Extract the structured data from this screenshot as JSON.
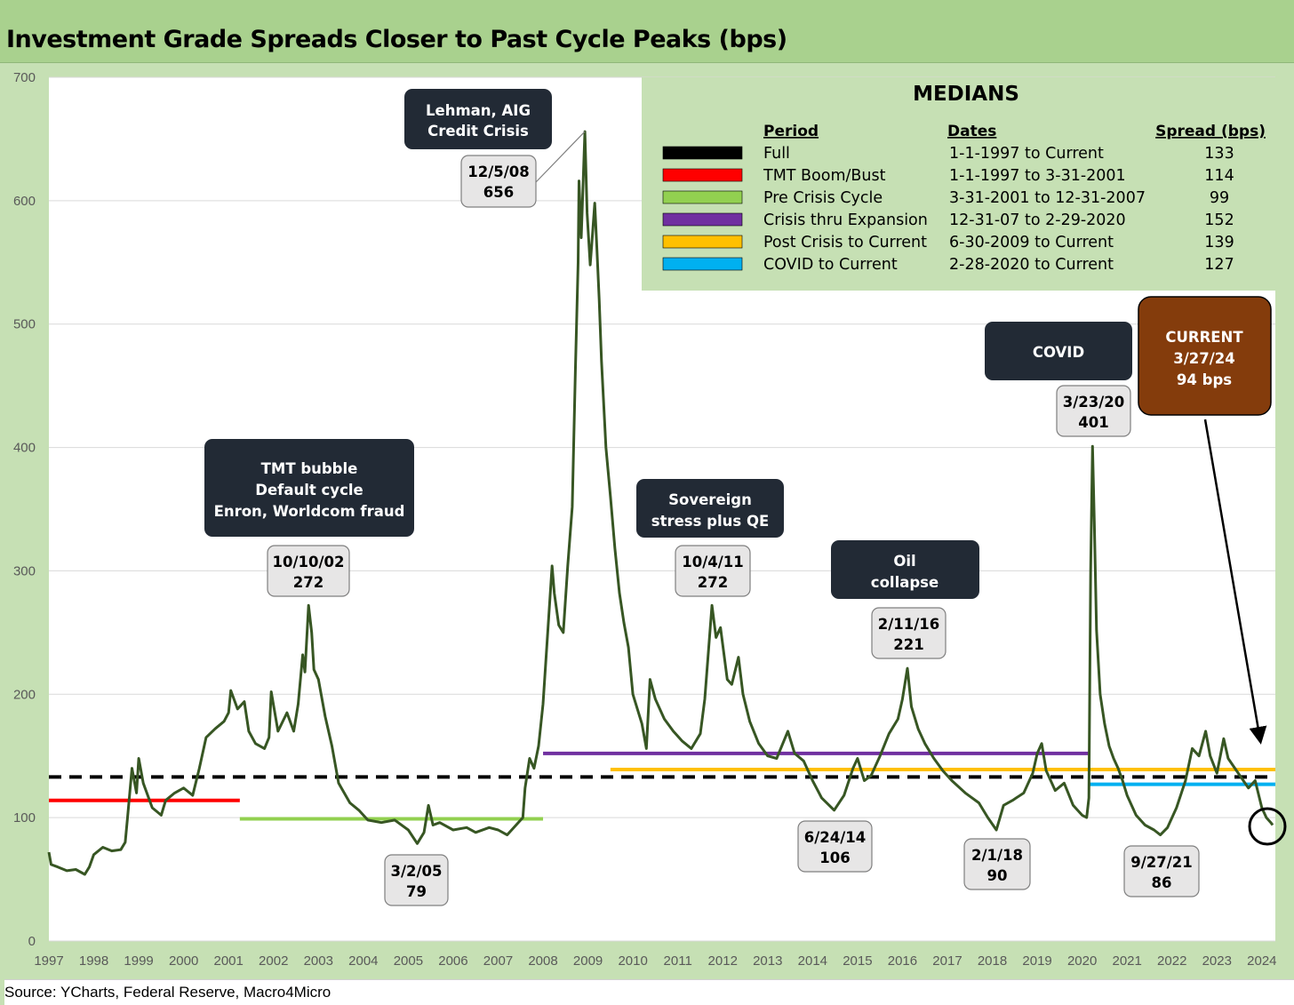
{
  "title": "Investment Grade Spreads Closer to Past Cycle Peaks (bps)",
  "source": "Source: YCharts, Federal Reserve, Macro4Micro",
  "chart_data": {
    "type": "line",
    "title": "Investment Grade Spreads Closer to Past Cycle Peaks (bps)",
    "ylim": [
      0,
      700
    ],
    "yticks": [
      "0",
      "100",
      "200",
      "300",
      "400",
      "500",
      "600",
      "700"
    ],
    "xticks": [
      "1997",
      "1998",
      "1999",
      "2000",
      "2001",
      "2002",
      "2003",
      "2004",
      "2005",
      "2006",
      "2007",
      "2008",
      "2009",
      "2010",
      "2011",
      "2012",
      "2013",
      "2014",
      "2015",
      "2016",
      "2017",
      "2018",
      "2019",
      "2020",
      "2021",
      "2022",
      "2023",
      "2024"
    ],
    "xlim": [
      1997.0,
      2024.3
    ],
    "grid": "horizontal",
    "line_color": "#375623",
    "series": [
      {
        "values": [
          [
            1997.0,
            72
          ],
          [
            1997.05,
            62
          ],
          [
            1997.2,
            60
          ],
          [
            1997.4,
            57
          ],
          [
            1997.6,
            58
          ],
          [
            1997.8,
            54
          ],
          [
            1997.9,
            60
          ],
          [
            1998.0,
            70
          ],
          [
            1998.2,
            76
          ],
          [
            1998.4,
            73
          ],
          [
            1998.6,
            74
          ],
          [
            1998.7,
            80
          ],
          [
            1998.75,
            100
          ],
          [
            1998.85,
            140
          ],
          [
            1998.95,
            120
          ],
          [
            1999.0,
            148
          ],
          [
            1999.1,
            128
          ],
          [
            1999.3,
            108
          ],
          [
            1999.5,
            102
          ],
          [
            1999.6,
            114
          ],
          [
            1999.8,
            120
          ],
          [
            2000.0,
            124
          ],
          [
            2000.2,
            118
          ],
          [
            2000.35,
            140
          ],
          [
            2000.5,
            165
          ],
          [
            2000.7,
            172
          ],
          [
            2000.9,
            178
          ],
          [
            2001.0,
            185
          ],
          [
            2001.05,
            203
          ],
          [
            2001.2,
            188
          ],
          [
            2001.35,
            194
          ],
          [
            2001.45,
            170
          ],
          [
            2001.6,
            160
          ],
          [
            2001.8,
            156
          ],
          [
            2001.9,
            165
          ],
          [
            2001.95,
            202
          ],
          [
            2002.1,
            170
          ],
          [
            2002.3,
            185
          ],
          [
            2002.45,
            170
          ],
          [
            2002.55,
            192
          ],
          [
            2002.65,
            232
          ],
          [
            2002.7,
            218
          ],
          [
            2002.78,
            272
          ],
          [
            2002.85,
            250
          ],
          [
            2002.9,
            220
          ],
          [
            2003.0,
            212
          ],
          [
            2003.15,
            182
          ],
          [
            2003.3,
            158
          ],
          [
            2003.45,
            128
          ],
          [
            2003.7,
            112
          ],
          [
            2003.9,
            106
          ],
          [
            2004.1,
            98
          ],
          [
            2004.4,
            96
          ],
          [
            2004.7,
            98
          ],
          [
            2005.0,
            90
          ],
          [
            2005.2,
            79
          ],
          [
            2005.35,
            88
          ],
          [
            2005.45,
            110
          ],
          [
            2005.55,
            94
          ],
          [
            2005.7,
            96
          ],
          [
            2006.0,
            90
          ],
          [
            2006.3,
            92
          ],
          [
            2006.5,
            88
          ],
          [
            2006.8,
            92
          ],
          [
            2007.0,
            90
          ],
          [
            2007.2,
            86
          ],
          [
            2007.4,
            94
          ],
          [
            2007.55,
            100
          ],
          [
            2007.6,
            124
          ],
          [
            2007.7,
            148
          ],
          [
            2007.8,
            140
          ],
          [
            2007.9,
            158
          ],
          [
            2008.0,
            192
          ],
          [
            2008.1,
            248
          ],
          [
            2008.2,
            304
          ],
          [
            2008.25,
            282
          ],
          [
            2008.35,
            256
          ],
          [
            2008.45,
            250
          ],
          [
            2008.55,
            304
          ],
          [
            2008.65,
            352
          ],
          [
            2008.72,
            462
          ],
          [
            2008.78,
            550
          ],
          [
            2008.8,
            616
          ],
          [
            2008.85,
            570
          ],
          [
            2008.93,
            656
          ],
          [
            2008.98,
            590
          ],
          [
            2009.05,
            548
          ],
          [
            2009.1,
            572
          ],
          [
            2009.15,
            598
          ],
          [
            2009.2,
            560
          ],
          [
            2009.25,
            520
          ],
          [
            2009.3,
            470
          ],
          [
            2009.4,
            400
          ],
          [
            2009.5,
            360
          ],
          [
            2009.6,
            318
          ],
          [
            2009.7,
            282
          ],
          [
            2009.8,
            258
          ],
          [
            2009.9,
            238
          ],
          [
            2010.0,
            200
          ],
          [
            2010.2,
            176
          ],
          [
            2010.3,
            156
          ],
          [
            2010.38,
            212
          ],
          [
            2010.5,
            196
          ],
          [
            2010.7,
            180
          ],
          [
            2010.9,
            170
          ],
          [
            2011.1,
            162
          ],
          [
            2011.3,
            156
          ],
          [
            2011.5,
            168
          ],
          [
            2011.6,
            196
          ],
          [
            2011.76,
            272
          ],
          [
            2011.85,
            246
          ],
          [
            2011.95,
            254
          ],
          [
            2012.1,
            212
          ],
          [
            2012.2,
            208
          ],
          [
            2012.35,
            230
          ],
          [
            2012.45,
            200
          ],
          [
            2012.6,
            178
          ],
          [
            2012.8,
            160
          ],
          [
            2013.0,
            150
          ],
          [
            2013.2,
            148
          ],
          [
            2013.45,
            170
          ],
          [
            2013.6,
            152
          ],
          [
            2013.8,
            146
          ],
          [
            2014.0,
            130
          ],
          [
            2014.2,
            116
          ],
          [
            2014.48,
            106
          ],
          [
            2014.7,
            118
          ],
          [
            2014.9,
            140
          ],
          [
            2015.0,
            148
          ],
          [
            2015.15,
            130
          ],
          [
            2015.3,
            134
          ],
          [
            2015.5,
            150
          ],
          [
            2015.7,
            168
          ],
          [
            2015.9,
            180
          ],
          [
            2016.0,
            196
          ],
          [
            2016.11,
            221
          ],
          [
            2016.2,
            190
          ],
          [
            2016.35,
            172
          ],
          [
            2016.5,
            160
          ],
          [
            2016.7,
            148
          ],
          [
            2016.9,
            138
          ],
          [
            2017.1,
            130
          ],
          [
            2017.4,
            120
          ],
          [
            2017.7,
            112
          ],
          [
            2017.9,
            100
          ],
          [
            2018.09,
            90
          ],
          [
            2018.25,
            110
          ],
          [
            2018.45,
            114
          ],
          [
            2018.7,
            120
          ],
          [
            2018.9,
            136
          ],
          [
            2019.0,
            152
          ],
          [
            2019.1,
            160
          ],
          [
            2019.2,
            138
          ],
          [
            2019.4,
            122
          ],
          [
            2019.6,
            128
          ],
          [
            2019.8,
            110
          ],
          [
            2020.0,
            102
          ],
          [
            2020.1,
            100
          ],
          [
            2020.15,
            116
          ],
          [
            2020.19,
            300
          ],
          [
            2020.23,
            401
          ],
          [
            2020.27,
            340
          ],
          [
            2020.32,
            252
          ],
          [
            2020.4,
            200
          ],
          [
            2020.5,
            176
          ],
          [
            2020.6,
            158
          ],
          [
            2020.7,
            148
          ],
          [
            2020.8,
            140
          ],
          [
            2020.9,
            130
          ],
          [
            2021.0,
            118
          ],
          [
            2021.2,
            102
          ],
          [
            2021.4,
            94
          ],
          [
            2021.6,
            90
          ],
          [
            2021.74,
            86
          ],
          [
            2021.9,
            92
          ],
          [
            2022.1,
            108
          ],
          [
            2022.3,
            130
          ],
          [
            2022.45,
            156
          ],
          [
            2022.6,
            150
          ],
          [
            2022.75,
            170
          ],
          [
            2022.85,
            150
          ],
          [
            2023.0,
            136
          ],
          [
            2023.15,
            164
          ],
          [
            2023.25,
            148
          ],
          [
            2023.4,
            140
          ],
          [
            2023.55,
            132
          ],
          [
            2023.7,
            124
          ],
          [
            2023.85,
            130
          ],
          [
            2024.0,
            108
          ],
          [
            2024.1,
            100
          ],
          [
            2024.2,
            96
          ],
          [
            2024.24,
            94
          ]
        ]
      }
    ]
  },
  "medians": {
    "heading": "MEDIANS",
    "col_period": "Period",
    "col_dates": "Dates",
    "col_spread": "Spread (bps)",
    "rows": [
      {
        "period": "Full",
        "dates": "1-1-1997 to Current",
        "spread": "133",
        "color": "#000000",
        "value": 133,
        "start": 1997.0,
        "end": 2024.3,
        "dashed": true
      },
      {
        "period": "TMT Boom/Bust",
        "dates": "1-1-1997 to 3-31-2001",
        "spread": "114",
        "color": "#ff0000",
        "value": 114,
        "start": 1997.0,
        "end": 2001.25,
        "dashed": false
      },
      {
        "period": "Pre Crisis Cycle",
        "dates": "3-31-2001 to 12-31-2007",
        "spread": "99",
        "color": "#92d050",
        "value": 99,
        "start": 2001.25,
        "end": 2008.0,
        "dashed": false
      },
      {
        "period": "Crisis thru Expansion",
        "dates": "12-31-07 to 2-29-2020",
        "spread": "152",
        "color": "#7030a0",
        "value": 152,
        "start": 2008.0,
        "end": 2020.16,
        "dashed": false
      },
      {
        "period": "Post Crisis to Current",
        "dates": "6-30-2009 to Current",
        "spread": "139",
        "color": "#ffc000",
        "value": 139,
        "start": 2009.5,
        "end": 2024.3,
        "dashed": false
      },
      {
        "period": "COVID to Current",
        "dates": "2-28-2020 to Current",
        "spread": "127",
        "color": "#00b0f0",
        "value": 127,
        "start": 2020.16,
        "end": 2024.3,
        "dashed": false
      }
    ]
  },
  "annotations": {
    "dark_boxes": [
      {
        "lines": [
          "Lehman, AIG",
          "Credit Crisis"
        ]
      },
      {
        "lines": [
          "TMT bubble",
          "Default cycle",
          "Enron, Worldcom fraud"
        ]
      },
      {
        "lines": [
          "Sovereign",
          "stress plus QE"
        ]
      },
      {
        "lines": [
          "Oil",
          "collapse"
        ]
      },
      {
        "lines": [
          "COVID"
        ]
      }
    ],
    "current_box": {
      "lines": [
        "CURRENT",
        "3/27/24",
        "94 bps"
      ],
      "color": "#843c0c"
    },
    "point_labels": [
      {
        "date": "12/5/08",
        "value": "656"
      },
      {
        "date": "10/10/02",
        "value": "272"
      },
      {
        "date": "10/4/11",
        "value": "272"
      },
      {
        "date": "2/11/16",
        "value": "221"
      },
      {
        "date": "3/23/20",
        "value": "401"
      },
      {
        "date": "3/2/05",
        "value": "79"
      },
      {
        "date": "6/24/14",
        "value": "106"
      },
      {
        "date": "2/1/18",
        "value": "90"
      },
      {
        "date": "9/27/21",
        "value": "86"
      }
    ]
  }
}
